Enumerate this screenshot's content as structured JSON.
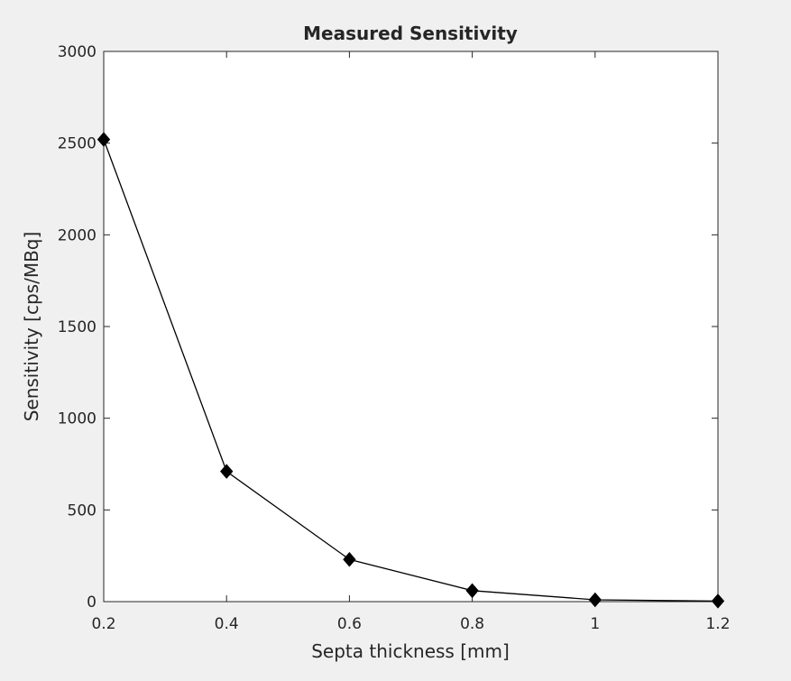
{
  "chart_data": {
    "type": "line",
    "title": "Measured Sensitivity",
    "xlabel": "Septa thickness [mm]",
    "ylabel": "Sensitivity [cps/MBq]",
    "xlim": [
      0.2,
      1.2
    ],
    "ylim": [
      0,
      3000
    ],
    "xticks": [
      0.2,
      0.4,
      0.6,
      0.8,
      1.0,
      1.2
    ],
    "xtick_labels": [
      "0.2",
      "0.4",
      "0.6",
      "0.8",
      "1",
      "1.2"
    ],
    "yticks": [
      0,
      500,
      1000,
      1500,
      2000,
      2500,
      3000
    ],
    "ytick_labels": [
      "0",
      "500",
      "1000",
      "1500",
      "2000",
      "2500",
      "3000"
    ],
    "grid": false,
    "series": [
      {
        "x": [
          0.2,
          0.4,
          0.6,
          0.8,
          1.0,
          1.2
        ],
        "y": [
          2520,
          710,
          230,
          60,
          10,
          3
        ],
        "color": "#000000",
        "marker": "diamond"
      }
    ]
  }
}
